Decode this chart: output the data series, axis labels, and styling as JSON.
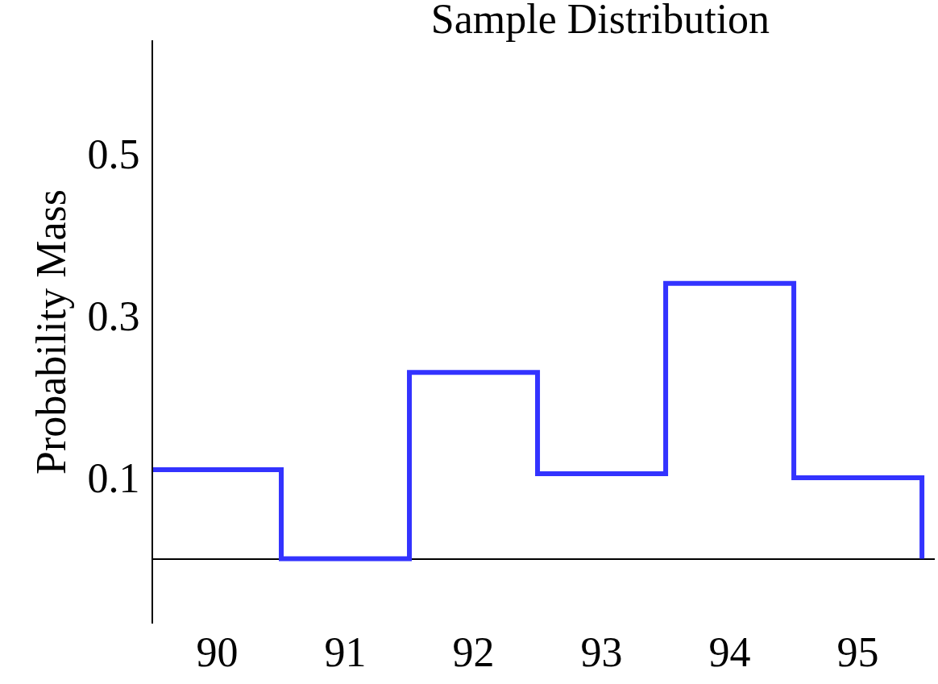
{
  "chart_data": {
    "type": "histogram",
    "title": "Sample Distribution",
    "ylabel": "Probability Mass",
    "bins": [
      89.5,
      90.5,
      91.5,
      92.5,
      93.5,
      94.5,
      95.5
    ],
    "values": [
      0.11,
      0,
      0.23,
      0.105,
      0.34,
      0.1
    ],
    "color": "#3333ff",
    "xlim": [
      89.5,
      95.6
    ],
    "xticks": [
      90,
      91,
      92,
      93,
      94,
      95
    ],
    "ylim": [
      -0.08,
      0.64
    ],
    "yticks": [
      0.1,
      0.3,
      0.5
    ]
  }
}
